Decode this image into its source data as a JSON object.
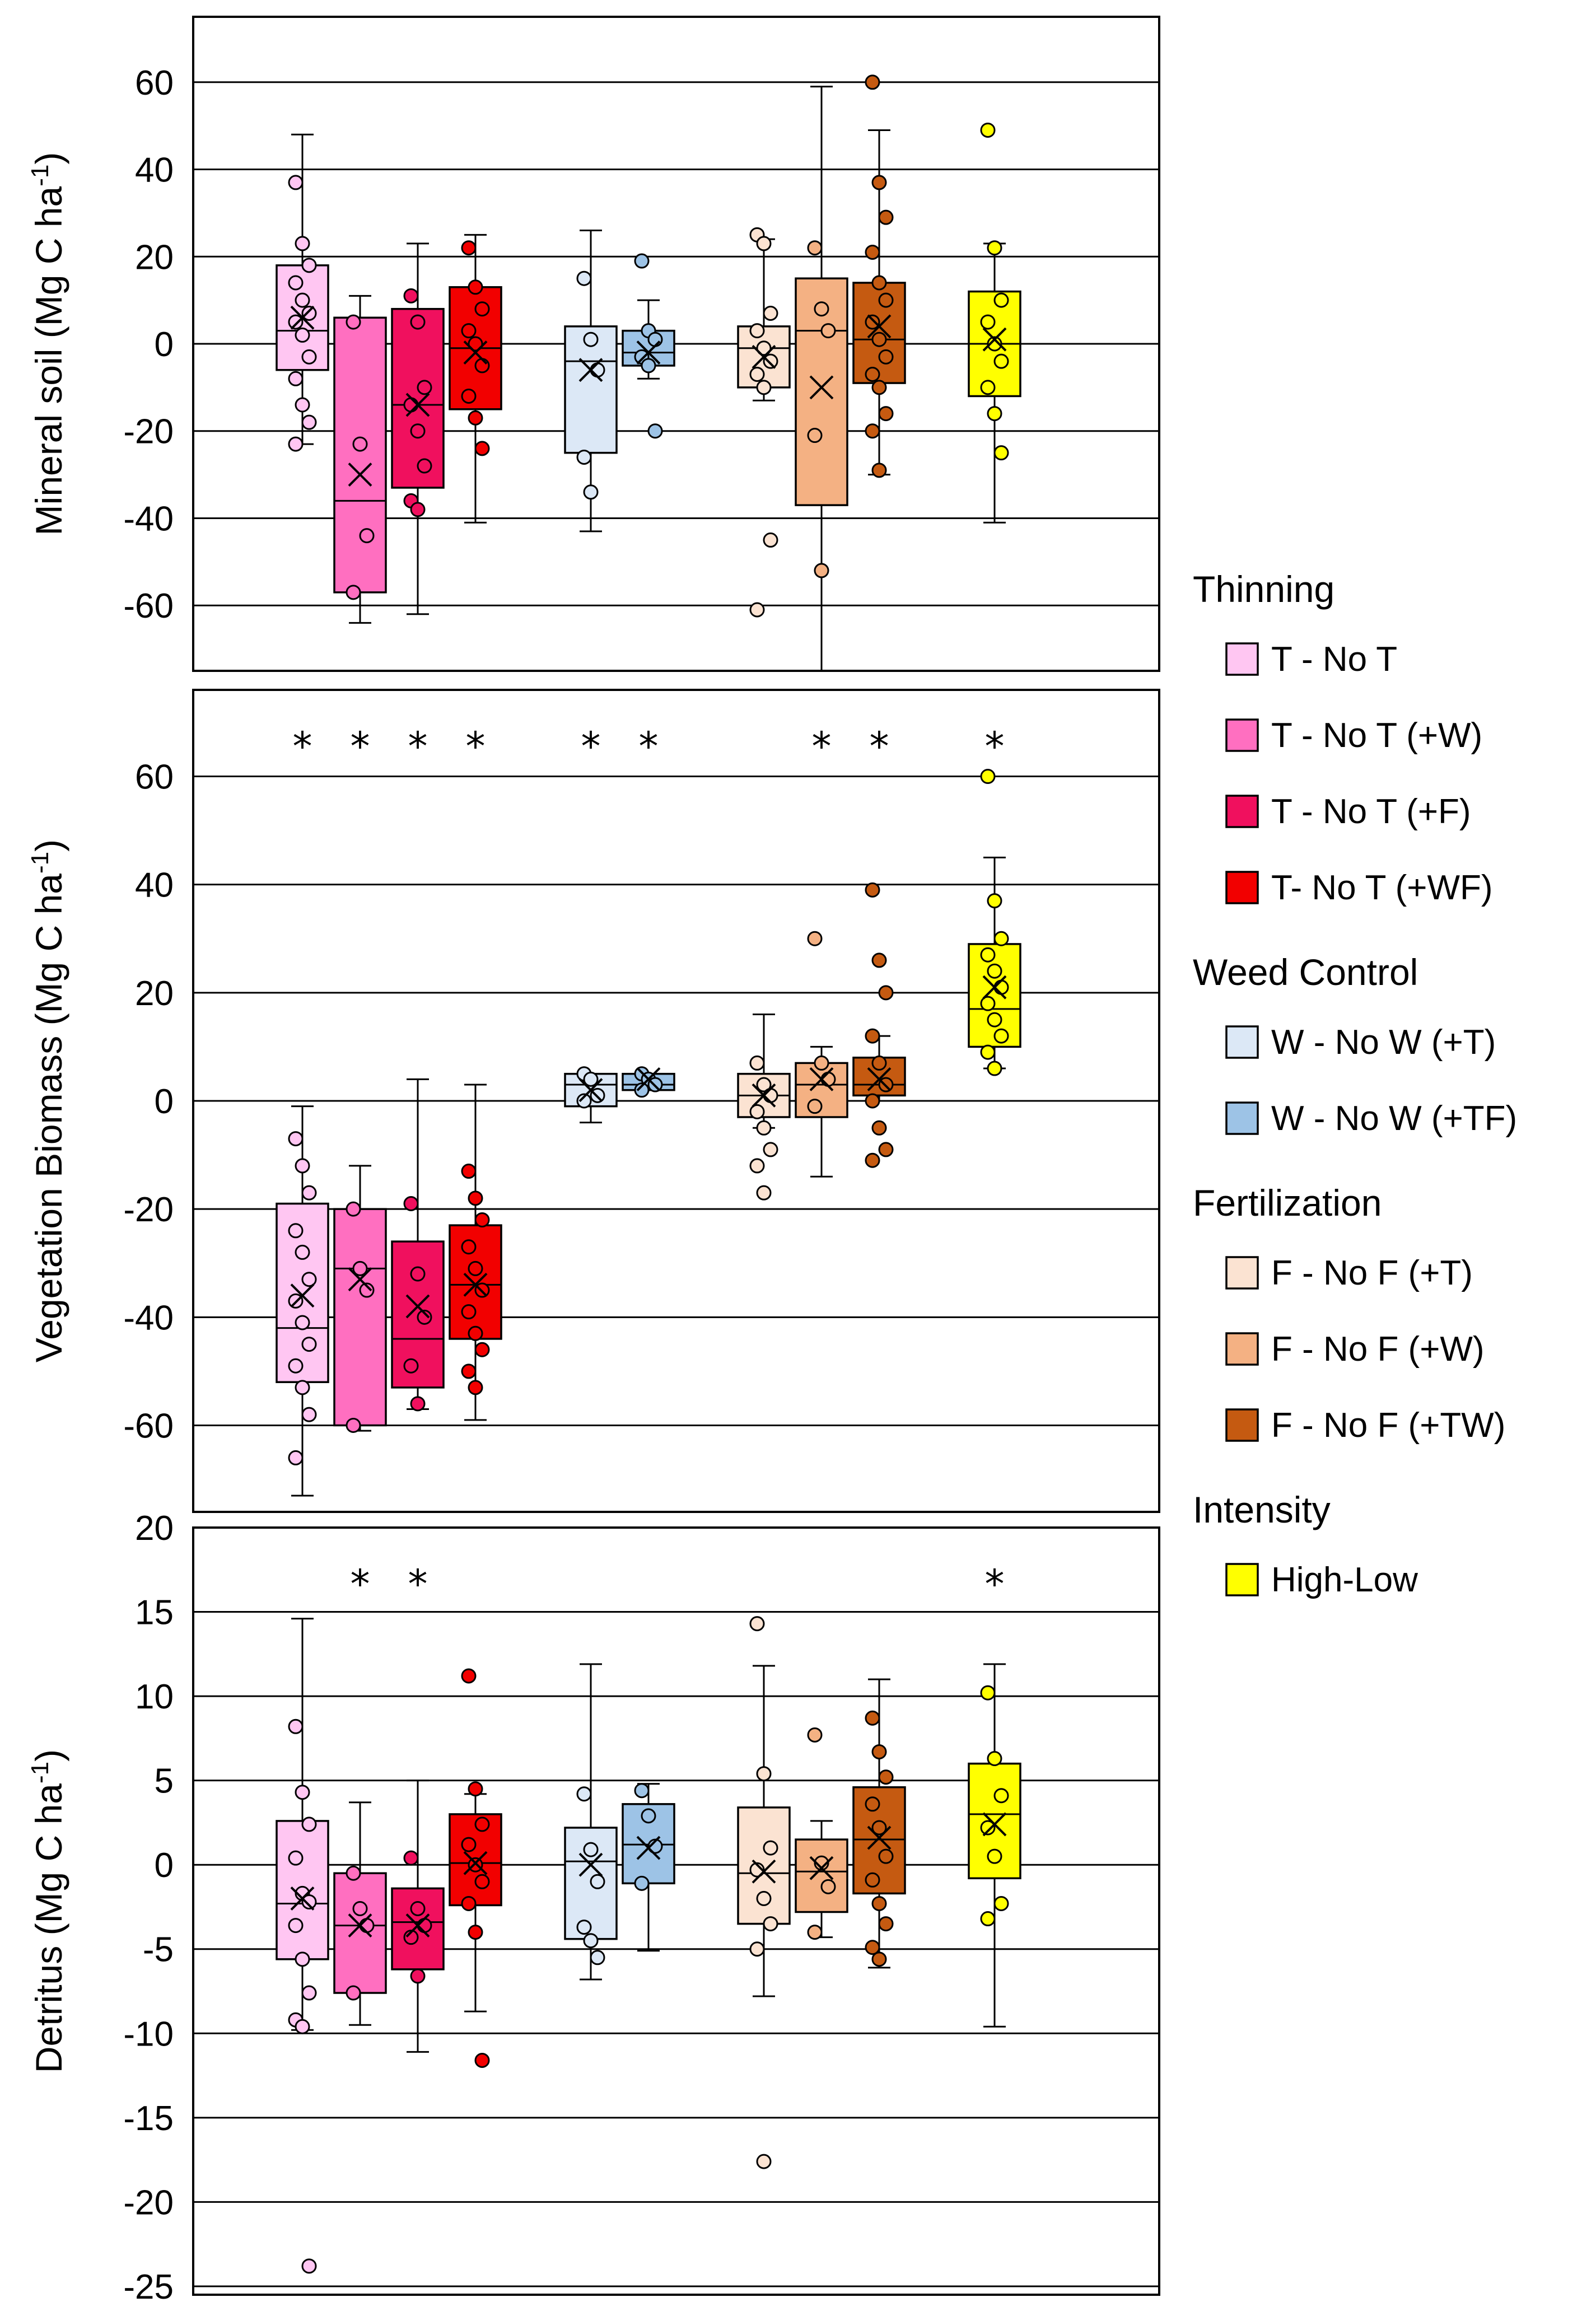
{
  "chart_data": {
    "type": "box",
    "legend": {
      "placement": "right",
      "groups": [
        {
          "heading": "Thinning",
          "items": [
            {
              "label": "T - No T",
              "color": "#FFC6F2"
            },
            {
              "label": "T - No T (+W)",
              "color": "#FF6FC0"
            },
            {
              "label": "T - No T (+F)",
              "color": "#F0105E"
            },
            {
              "label": "T- No T (+WF)",
              "color": "#F20000"
            }
          ]
        },
        {
          "heading": "Weed Control",
          "items": [
            {
              "label": "W - No W (+T)",
              "color": "#DCE8F6"
            },
            {
              "label": "W - No W (+TF)",
              "color": "#9DC3E6"
            }
          ]
        },
        {
          "heading": "Fertilization",
          "items": [
            {
              "label": "F - No F (+T)",
              "color": "#FBE3D2"
            },
            {
              "label": "F - No F (+W)",
              "color": "#F4B183"
            },
            {
              "label": "F - No F (+TW)",
              "color": "#C55A11"
            }
          ]
        },
        {
          "heading": "Intensity",
          "items": [
            {
              "label": "High-Low",
              "color": "#FFFF00"
            }
          ]
        }
      ]
    },
    "panels": [
      {
        "ylabel": "Mineral soil (Mg C ha-1)",
        "ylabel_main": "Mineral soil (Mg C ha",
        "ylabel_sup": "-1",
        "ylabel_end": ")",
        "ylim": [
          -75,
          75
        ],
        "yticks": [
          60,
          40,
          20,
          0,
          -20,
          -40,
          -60
        ],
        "yticklabels": [
          "60",
          "40",
          "20",
          "0",
          "-20",
          "-40",
          "-60"
        ],
        "boxes": [
          {
            "name": "T - No T",
            "slot": 0,
            "q1": -6,
            "median": 3,
            "q3": 18,
            "mean": 6,
            "whisker_low": -23,
            "whisker_high": 48,
            "points": [
              37,
              23,
              18,
              14,
              10,
              7,
              5,
              2,
              -3,
              -8,
              -14,
              -18,
              -23
            ],
            "star": false
          },
          {
            "name": "T - No T (+W)",
            "slot": 1,
            "q1": -57,
            "median": -36,
            "q3": 6,
            "mean": -30,
            "whisker_low": -64,
            "whisker_high": 11,
            "points": [
              5,
              -23,
              -44,
              -57
            ],
            "star": false
          },
          {
            "name": "T - No T (+F)",
            "slot": 2,
            "q1": -33,
            "median": -14,
            "q3": 8,
            "mean": -14,
            "whisker_low": -62,
            "whisker_high": 23,
            "points": [
              11,
              5,
              -10,
              -14,
              -20,
              -28,
              -36,
              -38
            ],
            "star": false
          },
          {
            "name": "T- No T (+WF)",
            "slot": 3,
            "q1": -15,
            "median": -1,
            "q3": 13,
            "mean": -2,
            "whisker_low": -41,
            "whisker_high": 25,
            "points": [
              22,
              13,
              8,
              3,
              0,
              -5,
              -12,
              -17,
              -24
            ],
            "star": false
          },
          {
            "name": "W - No W (+T)",
            "slot": 5,
            "q1": -25,
            "median": -4,
            "q3": 4,
            "mean": -6,
            "whisker_low": -43,
            "whisker_high": 26,
            "points": [
              15,
              1,
              -6,
              -26,
              -34
            ],
            "star": false
          },
          {
            "name": "W - No W (+TF)",
            "slot": 6,
            "q1": -5,
            "median": -2,
            "q3": 3,
            "mean": -2,
            "whisker_low": -8,
            "whisker_high": 10,
            "points": [
              19,
              3,
              1,
              -3,
              -5,
              -20
            ],
            "star": false
          },
          {
            "name": "F - No F (+T)",
            "slot": 8,
            "q1": -10,
            "median": -1,
            "q3": 4,
            "mean": -3,
            "whisker_low": -13,
            "whisker_high": 24,
            "points": [
              25,
              23,
              7,
              3,
              -1,
              -4,
              -7,
              -10,
              -45,
              -61
            ],
            "star": false
          },
          {
            "name": "F - No F (+W)",
            "slot": 9,
            "q1": -37,
            "median": 3,
            "q3": 15,
            "mean": -10,
            "whisker_low": -75,
            "whisker_high": 59,
            "points": [
              22,
              8,
              3,
              -21,
              -52
            ],
            "star": false
          },
          {
            "name": "F - No F (+TW)",
            "slot": 10,
            "q1": -9,
            "median": 1,
            "q3": 14,
            "mean": 4,
            "whisker_low": -30,
            "whisker_high": 49,
            "points": [
              60,
              37,
              29,
              21,
              14,
              10,
              5,
              1,
              -3,
              -7,
              -10,
              -16,
              -20,
              -29
            ],
            "star": false
          },
          {
            "name": "High-Low",
            "slot": 12,
            "q1": -12,
            "median": 0,
            "q3": 12,
            "mean": 1,
            "whisker_low": -41,
            "whisker_high": 23,
            "points": [
              49,
              22,
              10,
              5,
              0,
              -4,
              -10,
              -16,
              -25
            ],
            "star": false
          }
        ]
      },
      {
        "ylabel": "Vegetation Biomass (Mg C ha-1)",
        "ylabel_main": "Vegetation Biomass (Mg C ha",
        "ylabel_sup": "-1",
        "ylabel_end": ")",
        "ylim": [
          -76,
          76
        ],
        "yticks": [
          60,
          40,
          20,
          0,
          -20,
          -40,
          -60
        ],
        "yticklabels": [
          "60",
          "40",
          "20",
          "0",
          "-20",
          "-40",
          "-60"
        ],
        "boxes": [
          {
            "name": "T - No T",
            "slot": 0,
            "q1": -52,
            "median": -42,
            "q3": -19,
            "mean": -36,
            "whisker_low": -73,
            "whisker_high": -1,
            "points": [
              -7,
              -12,
              -17,
              -24,
              -28,
              -33,
              -37,
              -41,
              -45,
              -49,
              -53,
              -58,
              -66
            ],
            "star": true
          },
          {
            "name": "T - No T (+W)",
            "slot": 1,
            "q1": -60,
            "median": -31,
            "q3": -20,
            "mean": -33,
            "whisker_low": -61,
            "whisker_high": -12,
            "points": [
              -20,
              -31,
              -35,
              -60
            ],
            "star": true
          },
          {
            "name": "T - No T (+F)",
            "slot": 2,
            "q1": -53,
            "median": -44,
            "q3": -26,
            "mean": -38,
            "whisker_low": -57,
            "whisker_high": 4,
            "points": [
              -19,
              -32,
              -40,
              -49,
              -56
            ],
            "star": true
          },
          {
            "name": "T- No T (+WF)",
            "slot": 3,
            "q1": -44,
            "median": -34,
            "q3": -23,
            "mean": -34,
            "whisker_low": -59,
            "whisker_high": 3,
            "points": [
              -13,
              -18,
              -22,
              -27,
              -31,
              -35,
              -39,
              -43,
              -46,
              -50,
              -53
            ],
            "star": true
          },
          {
            "name": "W - No W (+T)",
            "slot": 5,
            "q1": -1,
            "median": 3,
            "q3": 5,
            "mean": 2,
            "whisker_low": -4,
            "whisker_high": 5,
            "points": [
              5,
              4,
              1,
              0
            ],
            "star": true
          },
          {
            "name": "W - No W (+TF)",
            "slot": 6,
            "q1": 2,
            "median": 3,
            "q3": 5,
            "mean": 4,
            "whisker_low": 2,
            "whisker_high": 5,
            "points": [
              5,
              4,
              3,
              2
            ],
            "star": true
          },
          {
            "name": "F - No F (+T)",
            "slot": 8,
            "q1": -3,
            "median": 1,
            "q3": 5,
            "mean": 1,
            "whisker_low": -5,
            "whisker_high": 16,
            "points": [
              7,
              3,
              1,
              -2,
              -5,
              -9,
              -12,
              -17
            ],
            "star": false
          },
          {
            "name": "F - No F (+W)",
            "slot": 9,
            "q1": -3,
            "median": 3,
            "q3": 7,
            "mean": 4,
            "whisker_low": -14,
            "whisker_high": 10,
            "points": [
              30,
              7,
              4,
              -1
            ],
            "star": true
          },
          {
            "name": "F - No F (+TW)",
            "slot": 10,
            "q1": 1,
            "median": 3,
            "q3": 8,
            "mean": 4,
            "whisker_low": 0,
            "whisker_high": 12,
            "points": [
              39,
              26,
              20,
              12,
              7,
              3,
              0,
              -5,
              -9,
              -11
            ],
            "star": true
          },
          {
            "name": "High-Low",
            "slot": 12,
            "q1": 10,
            "median": 17,
            "q3": 29,
            "mean": 21,
            "whisker_low": 6,
            "whisker_high": 45,
            "points": [
              60,
              37,
              30,
              27,
              24,
              21,
              18,
              15,
              12,
              9,
              6
            ],
            "star": true
          }
        ]
      },
      {
        "ylabel": "Detritus (Mg C ha-1)",
        "ylabel_main": "Detritus (Mg C ha",
        "ylabel_sup": "-1",
        "ylabel_end": ")",
        "ylim": [
          -25.5,
          20
        ],
        "yticks": [
          20,
          15,
          10,
          5,
          0,
          -5,
          -10,
          -15,
          -20,
          -25
        ],
        "yticklabels": [
          "20",
          "15",
          "10",
          "5",
          "0",
          "-5",
          "-10",
          "-15",
          "-20",
          "-25"
        ],
        "boxes": [
          {
            "name": "T - No T",
            "slot": 0,
            "q1": -5.6,
            "median": -2.3,
            "q3": 2.6,
            "mean": -2.0,
            "whisker_low": -9.8,
            "whisker_high": 14.6,
            "points": [
              8.2,
              4.3,
              2.4,
              0.4,
              -1.7,
              -2.2,
              -3.6,
              -5.6,
              -7.6,
              -9.2,
              -9.6,
              -23.8
            ],
            "star": false
          },
          {
            "name": "T - No T (+W)",
            "slot": 1,
            "q1": -7.6,
            "median": -3.6,
            "q3": -0.5,
            "mean": -3.6,
            "whisker_low": -9.5,
            "whisker_high": 3.7,
            "points": [
              -0.5,
              -2.6,
              -3.6,
              -7.6
            ],
            "star": true
          },
          {
            "name": "T - No T (+F)",
            "slot": 2,
            "q1": -6.2,
            "median": -3.4,
            "q3": -1.4,
            "mean": -3.6,
            "whisker_low": -11.1,
            "whisker_high": 5.0,
            "points": [
              0.4,
              -2.6,
              -3.6,
              -4.3,
              -6.6
            ],
            "star": true
          },
          {
            "name": "T- No T (+WF)",
            "slot": 3,
            "q1": -2.4,
            "median": 0.1,
            "q3": 3.0,
            "mean": 0.1,
            "whisker_low": -8.7,
            "whisker_high": 4.2,
            "points": [
              11.2,
              4.5,
              2.4,
              1.2,
              0,
              -1.0,
              -2.3,
              -4.0,
              -11.6
            ],
            "star": false
          },
          {
            "name": "W - No W (+T)",
            "slot": 5,
            "q1": -4.4,
            "median": 0.2,
            "q3": 2.2,
            "mean": 0.0,
            "whisker_low": -6.8,
            "whisker_high": 11.9,
            "points": [
              4.2,
              0.9,
              -1.0,
              -3.7,
              -4.5,
              -5.5
            ],
            "star": false
          },
          {
            "name": "W - No W (+TF)",
            "slot": 6,
            "q1": -1.1,
            "median": 1.2,
            "q3": 3.6,
            "mean": 1.0,
            "whisker_low": -5.1,
            "whisker_high": 4.8,
            "points": [
              4.4,
              2.9,
              1.1,
              -1.1
            ],
            "star": false
          },
          {
            "name": "F - No F (+T)",
            "slot": 8,
            "q1": -3.5,
            "median": -0.5,
            "q3": 3.4,
            "mean": -0.4,
            "whisker_low": -7.8,
            "whisker_high": 11.8,
            "points": [
              14.3,
              5.4,
              1.0,
              -0.3,
              -2.0,
              -3.5,
              -5.0,
              -17.6
            ],
            "star": false
          },
          {
            "name": "F - No F (+W)",
            "slot": 9,
            "q1": -2.8,
            "median": -0.4,
            "q3": 1.5,
            "mean": -0.2,
            "whisker_low": -4.3,
            "whisker_high": 2.6,
            "points": [
              7.7,
              0.1,
              -1.3,
              -4.0
            ],
            "star": false
          },
          {
            "name": "F - No F (+TW)",
            "slot": 10,
            "q1": -1.7,
            "median": 1.5,
            "q3": 4.6,
            "mean": 1.6,
            "whisker_low": -6.1,
            "whisker_high": 11.0,
            "points": [
              8.7,
              6.7,
              5.2,
              3.6,
              2.2,
              0.5,
              -0.9,
              -2.3,
              -3.5,
              -4.9,
              -5.6
            ],
            "star": false
          },
          {
            "name": "High-Low",
            "slot": 12,
            "q1": -0.8,
            "median": 3.0,
            "q3": 6.0,
            "mean": 2.4,
            "whisker_low": -9.6,
            "whisker_high": 11.9,
            "points": [
              10.2,
              6.3,
              4.1,
              2.2,
              0.5,
              -2.3,
              -3.2
            ],
            "star": true
          }
        ]
      }
    ]
  }
}
